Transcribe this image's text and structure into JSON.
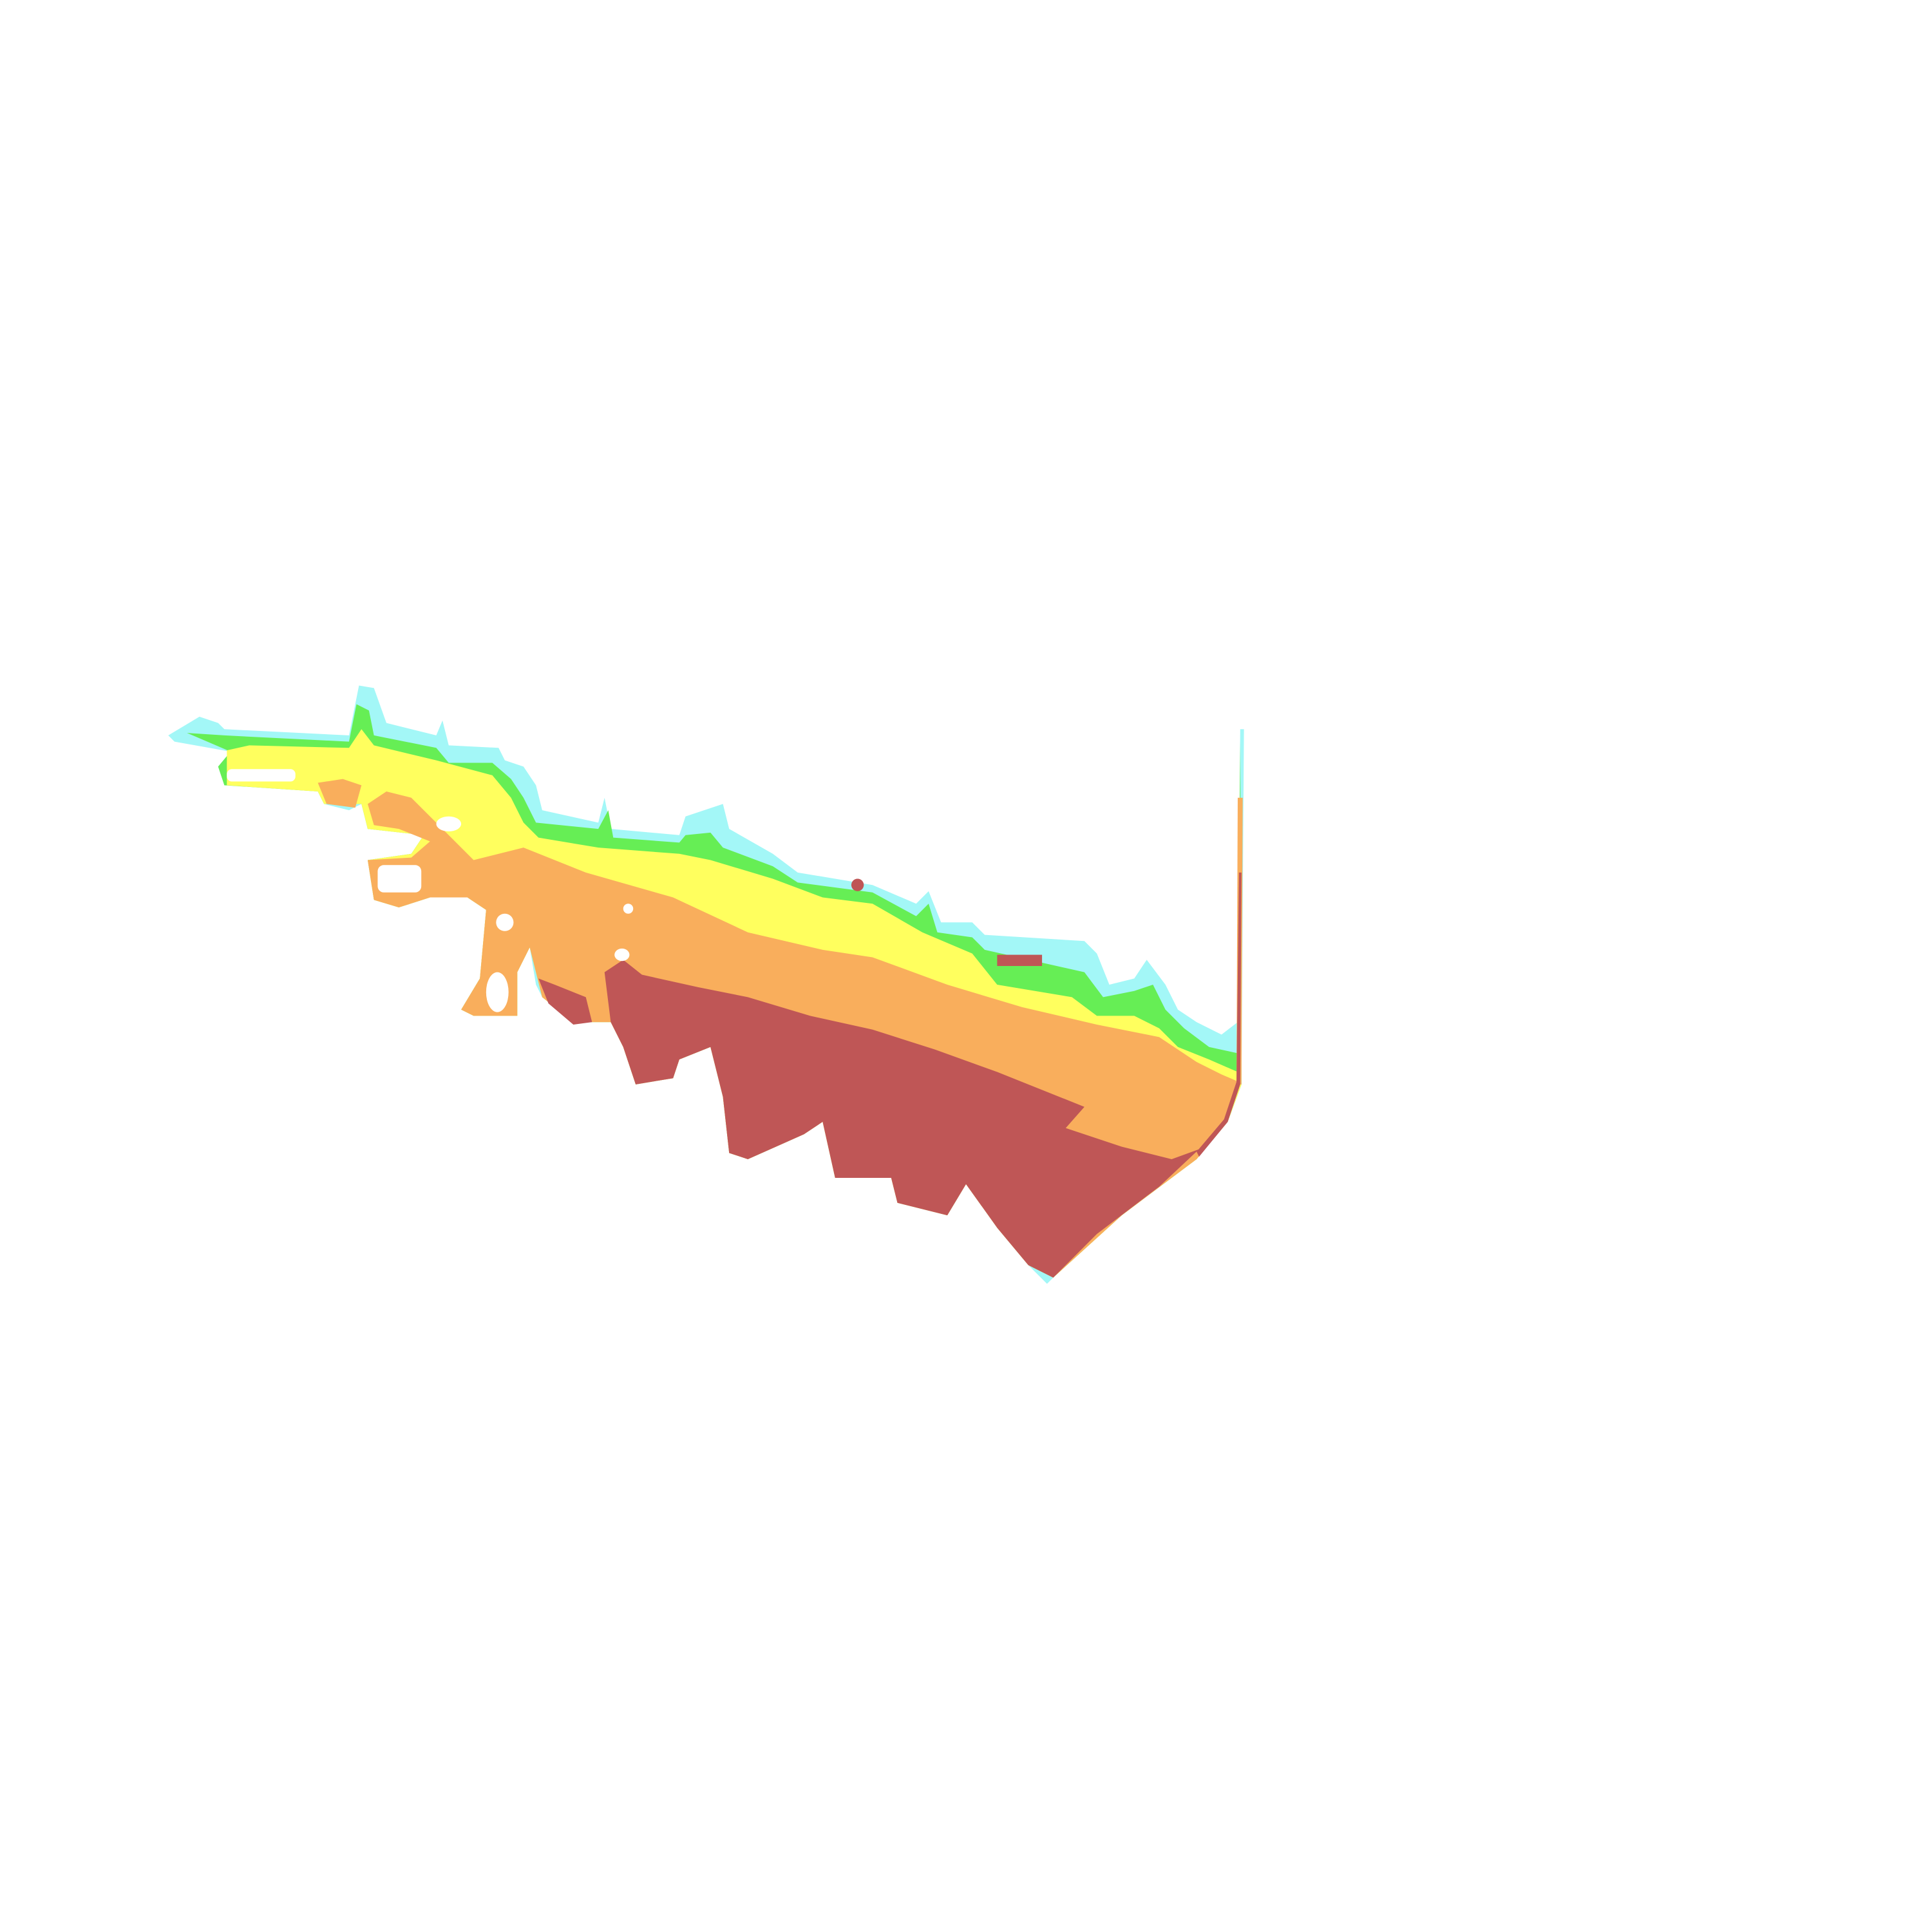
{
  "contour_map": {
    "background": "#ffffff",
    "bands": [
      {
        "name": "band-1",
        "color": "#a3f7f7"
      },
      {
        "name": "band-2",
        "color": "#66ee55"
      },
      {
        "name": "band-3",
        "color": "#ffff5e"
      },
      {
        "name": "band-4",
        "color": "#f9ae5c"
      },
      {
        "name": "band-5",
        "color": "#bf5656"
      }
    ]
  }
}
